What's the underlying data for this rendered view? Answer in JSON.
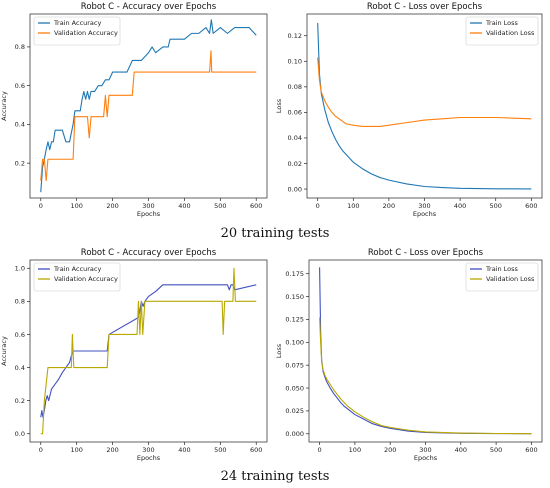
{
  "captions": [
    "20 training tests",
    "24 training tests"
  ],
  "chart_data": [
    {
      "type": "line",
      "title": "Robot C - Accuracy over Epochs",
      "xlabel": "Epochs",
      "ylabel": "Accuracy",
      "xlim": [
        -30,
        630
      ],
      "ylim": [
        0.02,
        0.97
      ],
      "xticks": [
        0,
        100,
        200,
        300,
        400,
        500,
        600
      ],
      "yticks": [
        0.2,
        0.4,
        0.6,
        0.8
      ],
      "legend": "top-left",
      "series": [
        {
          "name": "Train Accuracy",
          "color": "#1f77b4",
          "x": [
            0,
            5,
            10,
            15,
            20,
            25,
            30,
            35,
            40,
            50,
            60,
            70,
            80,
            90,
            95,
            100,
            110,
            115,
            120,
            125,
            130,
            135,
            140,
            150,
            160,
            170,
            180,
            190,
            200,
            210,
            220,
            240,
            255,
            260,
            280,
            300,
            310,
            320,
            340,
            355,
            360,
            380,
            400,
            420,
            440,
            460,
            470,
            475,
            480,
            500,
            520,
            540,
            560,
            580,
            600
          ],
          "y": [
            0.05,
            0.18,
            0.22,
            0.27,
            0.31,
            0.27,
            0.31,
            0.31,
            0.37,
            0.37,
            0.37,
            0.31,
            0.31,
            0.4,
            0.47,
            0.47,
            0.47,
            0.53,
            0.57,
            0.53,
            0.57,
            0.53,
            0.57,
            0.57,
            0.6,
            0.6,
            0.63,
            0.63,
            0.67,
            0.67,
            0.67,
            0.67,
            0.73,
            0.73,
            0.73,
            0.77,
            0.8,
            0.77,
            0.8,
            0.8,
            0.84,
            0.84,
            0.84,
            0.87,
            0.87,
            0.9,
            0.87,
            0.94,
            0.87,
            0.9,
            0.87,
            0.9,
            0.9,
            0.9,
            0.86
          ]
        },
        {
          "name": "Validation Accuracy",
          "color": "#ff7f0e",
          "x": [
            0,
            5,
            10,
            15,
            20,
            25,
            30,
            90,
            95,
            130,
            135,
            140,
            175,
            180,
            185,
            190,
            255,
            260,
            470,
            474,
            476,
            480,
            600
          ],
          "y": [
            0.11,
            0.22,
            0.22,
            0.11,
            0.22,
            0.22,
            0.22,
            0.22,
            0.44,
            0.44,
            0.33,
            0.44,
            0.44,
            0.55,
            0.44,
            0.55,
            0.55,
            0.67,
            0.67,
            0.78,
            0.67,
            0.67,
            0.67
          ]
        }
      ]
    },
    {
      "type": "line",
      "title": "Robot C - Loss over Epochs",
      "xlabel": "Epochs",
      "ylabel": "Loss",
      "xlim": [
        -30,
        630
      ],
      "ylim": [
        -0.007,
        0.137
      ],
      "xticks": [
        0,
        100,
        200,
        300,
        400,
        500,
        600
      ],
      "yticks": [
        0.0,
        0.02,
        0.04,
        0.06,
        0.08,
        0.1,
        0.12
      ],
      "legend": "top-right",
      "series": [
        {
          "name": "Train Loss",
          "color": "#1f77b4",
          "x": [
            0,
            5,
            10,
            20,
            30,
            40,
            50,
            60,
            70,
            80,
            90,
            100,
            125,
            150,
            175,
            200,
            250,
            300,
            350,
            400,
            500,
            600
          ],
          "y": [
            0.13,
            0.09,
            0.075,
            0.062,
            0.052,
            0.045,
            0.039,
            0.034,
            0.03,
            0.027,
            0.024,
            0.021,
            0.016,
            0.012,
            0.009,
            0.007,
            0.004,
            0.002,
            0.0012,
            0.0006,
            0.0002,
            0.0001
          ]
        },
        {
          "name": "Validation Loss",
          "color": "#ff7f0e",
          "x": [
            0,
            5,
            10,
            20,
            30,
            40,
            50,
            60,
            70,
            80,
            100,
            125,
            150,
            175,
            200,
            250,
            300,
            350,
            400,
            450,
            500,
            550,
            600
          ],
          "y": [
            0.103,
            0.085,
            0.076,
            0.069,
            0.064,
            0.06,
            0.057,
            0.055,
            0.053,
            0.051,
            0.05,
            0.049,
            0.049,
            0.049,
            0.05,
            0.052,
            0.054,
            0.055,
            0.056,
            0.056,
            0.056,
            0.0555,
            0.055
          ]
        }
      ]
    },
    {
      "type": "line",
      "title": "Robot C - Accuracy over Epochs",
      "xlabel": "Epochs",
      "ylabel": "Accuracy",
      "xlim": [
        -30,
        630
      ],
      "ylim": [
        -0.05,
        1.05
      ],
      "xticks": [
        0,
        100,
        200,
        300,
        400,
        500,
        600
      ],
      "yticks": [
        0.0,
        0.2,
        0.4,
        0.6,
        0.8,
        1.0
      ],
      "legend": "top-left",
      "series": [
        {
          "name": "Train Accuracy",
          "color": "#4050c0",
          "x": [
            0,
            3,
            6,
            10,
            14,
            18,
            22,
            30,
            40,
            50,
            60,
            70,
            80,
            85,
            90,
            185,
            190,
            270,
            275,
            280,
            285,
            290,
            300,
            320,
            340,
            520,
            525,
            530,
            535,
            540,
            600
          ],
          "y": [
            0.1,
            0.14,
            0.1,
            0.14,
            0.2,
            0.23,
            0.2,
            0.27,
            0.3,
            0.33,
            0.37,
            0.4,
            0.43,
            0.47,
            0.5,
            0.5,
            0.6,
            0.7,
            0.73,
            0.8,
            0.77,
            0.8,
            0.83,
            0.86,
            0.9,
            0.9,
            0.87,
            0.9,
            0.9,
            0.87,
            0.9
          ]
        },
        {
          "name": "Validation Accuracy",
          "color": "#b8a800",
          "x": [
            0,
            5,
            10,
            20,
            85,
            88,
            92,
            185,
            190,
            268,
            272,
            276,
            280,
            284,
            290,
            505,
            508,
            512,
            535,
            538,
            542,
            600
          ],
          "y": [
            0.0,
            0.0,
            0.2,
            0.4,
            0.4,
            0.6,
            0.4,
            0.4,
            0.6,
            0.6,
            0.8,
            0.6,
            0.8,
            0.6,
            0.8,
            0.8,
            0.6,
            0.8,
            0.8,
            1.0,
            0.8,
            0.8
          ]
        }
      ]
    },
    {
      "type": "line",
      "title": "Robot C - Loss over Epochs",
      "xlabel": "Epochs",
      "ylabel": "Loss",
      "xlim": [
        -30,
        630
      ],
      "ylim": [
        -0.009,
        0.19
      ],
      "xticks": [
        0,
        100,
        200,
        300,
        400,
        500,
        600
      ],
      "yticks": [
        0.0,
        0.025,
        0.05,
        0.075,
        0.1,
        0.125,
        0.15,
        0.175
      ],
      "legend": "top-right",
      "series": [
        {
          "name": "Train Loss",
          "color": "#4050c0",
          "x": [
            0,
            3,
            6,
            10,
            15,
            20,
            30,
            40,
            50,
            60,
            70,
            80,
            100,
            125,
            150,
            175,
            200,
            250,
            300,
            400,
            500,
            600
          ],
          "y": [
            0.182,
            0.11,
            0.08,
            0.068,
            0.062,
            0.057,
            0.05,
            0.044,
            0.039,
            0.034,
            0.03,
            0.027,
            0.021,
            0.016,
            0.011,
            0.008,
            0.006,
            0.003,
            0.0015,
            0.0005,
            0.0002,
            0.0001
          ]
        },
        {
          "name": "Validation Loss",
          "color": "#b8a800",
          "x": [
            0,
            3,
            6,
            10,
            15,
            20,
            30,
            40,
            50,
            60,
            70,
            80,
            100,
            125,
            150,
            175,
            200,
            250,
            300,
            400,
            500,
            600
          ],
          "y": [
            0.127,
            0.1,
            0.078,
            0.07,
            0.064,
            0.06,
            0.054,
            0.048,
            0.043,
            0.038,
            0.034,
            0.03,
            0.024,
            0.018,
            0.013,
            0.009,
            0.007,
            0.004,
            0.002,
            0.0008,
            0.0003,
            0.0001
          ]
        }
      ]
    }
  ]
}
